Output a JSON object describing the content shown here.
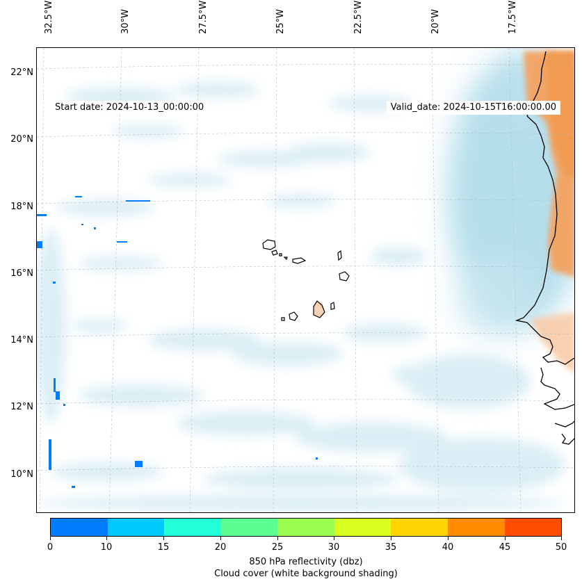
{
  "map": {
    "start_date": "Start date: 2024-10-13_00:00:00",
    "valid_date": "Valid_date: 2024-10-15T16:00:00.00",
    "longitude_labels": [
      "32.5°W",
      "30°W",
      "27.5°W",
      "25°W",
      "22.5°W",
      "20°W",
      "17.5°W"
    ],
    "latitude_labels": [
      "22°N",
      "20°N",
      "18°N",
      "16°N",
      "14°N",
      "12°N",
      "10°N"
    ],
    "colors": {
      "cloud_cover": "#a8d8e8",
      "high_cloud": "#9fd3e4",
      "warm_land": "#f4a261",
      "coastline": "#000000",
      "gridline": "#bbbbbb"
    }
  },
  "colorbar": {
    "ticks": [
      "0",
      "10",
      "15",
      "20",
      "25",
      "30",
      "35",
      "40",
      "45",
      "50"
    ],
    "colors": [
      "#007dff",
      "#00c8ff",
      "#20ffd6",
      "#5cff8f",
      "#9bff50",
      "#d8ff20",
      "#ffd400",
      "#ff8c00",
      "#ff4d00"
    ],
    "label_line1": "850 hPa reflectivity (dbz)",
    "label_line2": "Cloud cover (white background shading)"
  }
}
